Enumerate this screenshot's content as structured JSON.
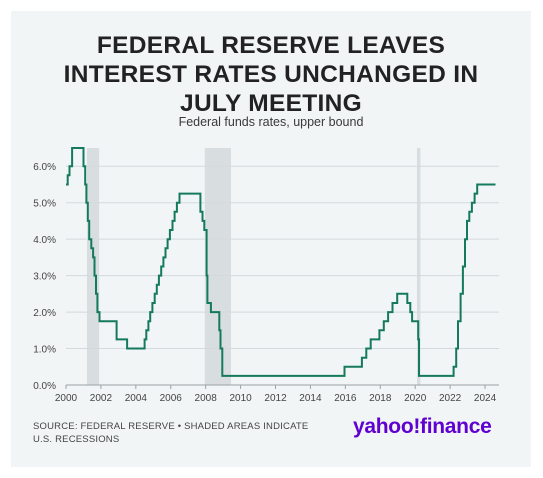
{
  "header": {
    "title_line1": "FEDERAL RESERVE LEAVES",
    "title_line2": "INTEREST RATES UNCHANGED IN",
    "title_line3": "JULY MEETING",
    "subtitle": "Federal funds rates, upper bound"
  },
  "footer": {
    "source_line1": "SOURCE: FEDERAL RESERVE • SHADED AREAS INDICATE",
    "source_line2": "U.S. RECESSIONS",
    "brand": "yahoo!finance"
  },
  "colors": {
    "line": "#157a5c",
    "recession": "#d8dedf",
    "grid": "#d4d9db",
    "axis": "#9aa3a6",
    "tick_text": "#444444",
    "brand": "#6001d2"
  },
  "chart_data": {
    "type": "line",
    "title": "FEDERAL RESERVE LEAVES INTEREST RATES UNCHANGED IN JULY MEETING",
    "subtitle": "Federal funds rates, upper bound",
    "xlabel": "",
    "ylabel": "",
    "xlim": [
      2000,
      2024.8
    ],
    "ylim": [
      0,
      6.5
    ],
    "x_ticks": [
      2000,
      2002,
      2004,
      2006,
      2008,
      2010,
      2012,
      2014,
      2016,
      2018,
      2020,
      2022,
      2024
    ],
    "y_ticks": [
      0,
      1,
      2,
      3,
      4,
      5,
      6
    ],
    "y_tick_labels": [
      "0.0%",
      "1.0%",
      "2.0%",
      "3.0%",
      "4.0%",
      "5.0%",
      "6.0%"
    ],
    "grid": "horizontal",
    "recessions": [
      [
        2001.2,
        2001.9
      ],
      [
        2007.95,
        2009.45
      ],
      [
        2020.1,
        2020.3
      ]
    ],
    "series": [
      {
        "values": [
          [
            2000.0,
            5.5
          ],
          [
            2000.1,
            5.75
          ],
          [
            2000.2,
            6.0
          ],
          [
            2000.35,
            6.5
          ],
          [
            2001.0,
            6.0
          ],
          [
            2001.1,
            5.5
          ],
          [
            2001.17,
            5.0
          ],
          [
            2001.25,
            4.5
          ],
          [
            2001.33,
            4.0
          ],
          [
            2001.45,
            3.75
          ],
          [
            2001.55,
            3.5
          ],
          [
            2001.63,
            3.0
          ],
          [
            2001.72,
            2.5
          ],
          [
            2001.8,
            2.0
          ],
          [
            2001.92,
            1.75
          ],
          [
            2002.9,
            1.25
          ],
          [
            2003.5,
            1.0
          ],
          [
            2004.5,
            1.25
          ],
          [
            2004.6,
            1.5
          ],
          [
            2004.72,
            1.75
          ],
          [
            2004.82,
            2.0
          ],
          [
            2004.95,
            2.25
          ],
          [
            2005.08,
            2.5
          ],
          [
            2005.2,
            2.75
          ],
          [
            2005.32,
            3.0
          ],
          [
            2005.45,
            3.25
          ],
          [
            2005.58,
            3.5
          ],
          [
            2005.7,
            3.75
          ],
          [
            2005.82,
            4.0
          ],
          [
            2005.95,
            4.25
          ],
          [
            2006.1,
            4.5
          ],
          [
            2006.22,
            4.75
          ],
          [
            2006.35,
            5.0
          ],
          [
            2006.5,
            5.25
          ],
          [
            2007.7,
            4.75
          ],
          [
            2007.82,
            4.5
          ],
          [
            2007.92,
            4.25
          ],
          [
            2008.05,
            3.0
          ],
          [
            2008.1,
            2.25
          ],
          [
            2008.3,
            2.0
          ],
          [
            2008.78,
            1.5
          ],
          [
            2008.85,
            1.0
          ],
          [
            2008.95,
            0.25
          ],
          [
            2015.95,
            0.5
          ],
          [
            2016.95,
            0.75
          ],
          [
            2017.2,
            1.0
          ],
          [
            2017.45,
            1.25
          ],
          [
            2017.95,
            1.5
          ],
          [
            2018.2,
            1.75
          ],
          [
            2018.45,
            2.0
          ],
          [
            2018.7,
            2.25
          ],
          [
            2018.97,
            2.5
          ],
          [
            2019.55,
            2.25
          ],
          [
            2019.72,
            2.0
          ],
          [
            2019.82,
            1.75
          ],
          [
            2020.17,
            1.25
          ],
          [
            2020.22,
            0.25
          ],
          [
            2022.2,
            0.5
          ],
          [
            2022.35,
            1.0
          ],
          [
            2022.45,
            1.75
          ],
          [
            2022.6,
            2.5
          ],
          [
            2022.73,
            3.25
          ],
          [
            2022.85,
            4.0
          ],
          [
            2022.97,
            4.5
          ],
          [
            2023.1,
            4.75
          ],
          [
            2023.25,
            5.0
          ],
          [
            2023.4,
            5.25
          ],
          [
            2023.55,
            5.5
          ],
          [
            2024.6,
            5.5
          ]
        ]
      }
    ]
  }
}
